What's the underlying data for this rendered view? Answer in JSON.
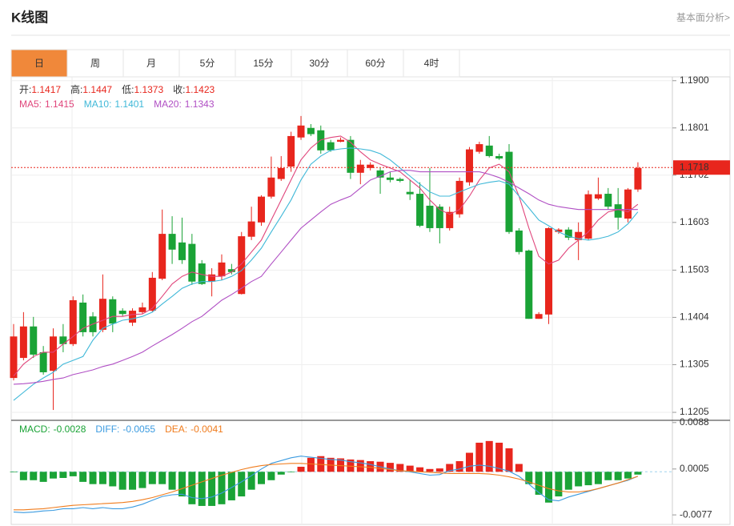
{
  "header": {
    "title": "K线图",
    "link": "基本面分析>"
  },
  "tabs": {
    "items": [
      "日",
      "周",
      "月",
      "5分",
      "15分",
      "30分",
      "60分",
      "4时"
    ],
    "active": 0,
    "active_color": "#f0883a"
  },
  "chart_data": [
    {
      "type": "candlestick",
      "info": {
        "color": "#e8261d",
        "items": [
          {
            "label": "开:",
            "value": 1.1417
          },
          {
            "label": "高:",
            "value": 1.1447
          },
          {
            "label": "低:",
            "value": 1.1373
          },
          {
            "label": "收:",
            "value": 1.1423
          }
        ]
      },
      "up_color": "#e8261d",
      "down_color": "#1aa336",
      "open": [
        1.1277,
        1.1319,
        1.1385,
        1.1331,
        1.1292,
        1.1364,
        1.1348,
        1.1435,
        1.1406,
        1.1378,
        1.1442,
        1.1418,
        1.1393,
        1.1415,
        1.1418,
        1.1485,
        1.1579,
        1.1561,
        1.1558,
        1.1517,
        1.1479,
        1.149,
        1.1505,
        1.1453,
        1.1573,
        1.1603,
        1.1657,
        1.1694,
        1.172,
        1.1781,
        1.1801,
        1.1796,
        1.1771,
        1.1772,
        1.1776,
        1.1707,
        1.1717,
        1.1712,
        1.1697,
        1.1694,
        1.1667,
        1.1663,
        1.1638,
        1.1636,
        1.1591,
        1.162,
        1.1687,
        1.1751,
        1.1764,
        1.1742,
        1.1751,
        1.1586,
        1.1544,
        1.1401,
        1.141,
        1.1583,
        1.1588,
        1.1566,
        1.1569,
        1.1653,
        1.1663,
        1.1641,
        1.1611,
        1.1672
      ],
      "high": [
        1.139,
        1.1415,
        1.1405,
        1.1344,
        1.1381,
        1.139,
        1.1448,
        1.1452,
        1.1415,
        1.1494,
        1.1448,
        1.1423,
        1.1423,
        1.1435,
        1.1499,
        1.163,
        1.1616,
        1.1613,
        1.1579,
        1.1524,
        1.1507,
        1.1536,
        1.1516,
        1.1583,
        1.1636,
        1.166,
        1.1741,
        1.1742,
        1.1793,
        1.1826,
        1.1809,
        1.1806,
        1.1776,
        1.1781,
        1.1784,
        1.1734,
        1.1729,
        1.1717,
        1.1709,
        1.1697,
        1.1692,
        1.1687,
        1.1717,
        1.1641,
        1.1636,
        1.1697,
        1.1761,
        1.1772,
        1.1784,
        1.1747,
        1.1767,
        1.1591,
        1.1546,
        1.1415,
        1.1593,
        1.1591,
        1.1593,
        1.1603,
        1.167,
        1.1697,
        1.1675,
        1.1675,
        1.1675,
        1.1729
      ],
      "low": [
        1.1272,
        1.1314,
        1.1319,
        1.1284,
        1.121,
        1.1331,
        1.1344,
        1.1364,
        1.1364,
        1.1373,
        1.1373,
        1.1406,
        1.1386,
        1.1411,
        1.1415,
        1.1482,
        1.1516,
        1.1516,
        1.1472,
        1.1472,
        1.1448,
        1.1482,
        1.1494,
        1.1452,
        1.1566,
        1.1596,
        1.1653,
        1.169,
        1.1709,
        1.1776,
        1.1784,
        1.1747,
        1.1751,
        1.1771,
        1.1694,
        1.1683,
        1.1712,
        1.1663,
        1.1687,
        1.1687,
        1.165,
        1.1593,
        1.1583,
        1.1559,
        1.1586,
        1.1613,
        1.168,
        1.1747,
        1.1739,
        1.1734,
        1.1579,
        1.1536,
        1.1401,
        1.1401,
        1.139,
        1.1579,
        1.1566,
        1.1524,
        1.1566,
        1.165,
        1.163,
        1.1588,
        1.1603,
        1.1667
      ],
      "close": [
        1.1364,
        1.1385,
        1.1326,
        1.1289,
        1.1364,
        1.1348,
        1.144,
        1.1373,
        1.1373,
        1.1443,
        1.1391,
        1.1411,
        1.1418,
        1.1425,
        1.1487,
        1.1579,
        1.1546,
        1.1524,
        1.1479,
        1.1474,
        1.1494,
        1.1519,
        1.1499,
        1.1574,
        1.1605,
        1.1657,
        1.1697,
        1.1717,
        1.1784,
        1.1806,
        1.1788,
        1.1754,
        1.1754,
        1.1776,
        1.1707,
        1.1724,
        1.1724,
        1.1697,
        1.1692,
        1.169,
        1.1662,
        1.1596,
        1.1591,
        1.1591,
        1.1625,
        1.169,
        1.1756,
        1.1767,
        1.1742,
        1.1737,
        1.1583,
        1.1541,
        1.1401,
        1.1411,
        1.1591,
        1.1588,
        1.1571,
        1.1583,
        1.1662,
        1.1662,
        1.1636,
        1.1613,
        1.1672,
        1.1717
      ],
      "series": [
        {
          "name": "MA5:",
          "legend_value": 1.1415,
          "color": "#e0457b",
          "values": [
            1.1281,
            1.1306,
            1.1322,
            1.1331,
            1.1331,
            1.1348,
            1.1364,
            1.1381,
            1.139,
            1.1398,
            1.1406,
            1.1406,
            1.141,
            1.1411,
            1.1423,
            1.1448,
            1.1474,
            1.149,
            1.1499,
            1.1494,
            1.149,
            1.149,
            1.1499,
            1.1516,
            1.1541,
            1.1566,
            1.1608,
            1.165,
            1.1692,
            1.1734,
            1.1759,
            1.1776,
            1.1781,
            1.1784,
            1.1771,
            1.1751,
            1.1734,
            1.1725,
            1.1717,
            1.1709,
            1.1692,
            1.1675,
            1.165,
            1.163,
            1.162,
            1.163,
            1.1658,
            1.1692,
            1.1717,
            1.1725,
            1.1709,
            1.1658,
            1.1591,
            1.1532,
            1.1516,
            1.1524,
            1.1549,
            1.1566,
            1.1583,
            1.1608,
            1.1625,
            1.163,
            1.1625,
            1.1641
          ]
        },
        {
          "name": "MA10:",
          "legend_value": 1.1401,
          "color": "#3fb8d8",
          "values": [
            1.123,
            1.1247,
            1.1264,
            1.1277,
            1.1289,
            1.1306,
            1.1314,
            1.1322,
            1.1356,
            1.1381,
            1.139,
            1.1398,
            1.1401,
            1.1406,
            1.1415,
            1.1432,
            1.1448,
            1.1465,
            1.1474,
            1.1479,
            1.1479,
            1.1482,
            1.149,
            1.1502,
            1.1524,
            1.1549,
            1.1583,
            1.1616,
            1.165,
            1.1692,
            1.1725,
            1.1742,
            1.1754,
            1.1757,
            1.1759,
            1.1757,
            1.1754,
            1.1747,
            1.1734,
            1.1717,
            1.17,
            1.1683,
            1.1667,
            1.1658,
            1.1658,
            1.1667,
            1.1675,
            1.1683,
            1.1687,
            1.169,
            1.1683,
            1.1658,
            1.1633,
            1.1608,
            1.1596,
            1.1583,
            1.1574,
            1.1569,
            1.1566,
            1.1569,
            1.1574,
            1.1583,
            1.16,
            1.1625
          ]
        },
        {
          "name": "MA20:",
          "legend_value": 1.1343,
          "color": "#b04fc4",
          "values": [
            1.1264,
            1.1265,
            1.1267,
            1.127,
            1.1274,
            1.1277,
            1.1284,
            1.1289,
            1.1294,
            1.1301,
            1.1306,
            1.1314,
            1.1322,
            1.1331,
            1.1344,
            1.1356,
            1.1368,
            1.1381,
            1.1395,
            1.1406,
            1.1423,
            1.144,
            1.1452,
            1.1465,
            1.1479,
            1.149,
            1.1516,
            1.1541,
            1.1566,
            1.1591,
            1.1608,
            1.1625,
            1.1641,
            1.165,
            1.1658,
            1.1675,
            1.1692,
            1.17,
            1.1709,
            1.1712,
            1.1712,
            1.1709,
            1.1709,
            1.1709,
            1.1709,
            1.1709,
            1.1709,
            1.1709,
            1.1704,
            1.1697,
            1.1687,
            1.1675,
            1.1663,
            1.165,
            1.1641,
            1.1636,
            1.1633,
            1.163,
            1.163,
            1.163,
            1.163,
            1.163,
            1.163,
            1.163
          ]
        }
      ],
      "last_price": 1.1718,
      "last_price_color": "#e8261d",
      "ylim": [
        1.1195,
        1.1908
      ],
      "yticks": [
        {
          "value": 1.19,
          "label": "1.1900"
        },
        1.1801,
        1.1702,
        1.1603,
        1.1503,
        1.1404,
        1.1305,
        1.1205
      ],
      "grid": true
    },
    {
      "type": "macd",
      "series": [
        {
          "name": "MACD:",
          "legend_value": -0.0028,
          "color": "#1aa336",
          "up_color": "#e8261d",
          "down_color": "#1aa336",
          "values": [
            -0.0001,
            -0.0015,
            -0.0015,
            -0.0018,
            -0.0012,
            -0.0011,
            -0.0008,
            -0.0018,
            -0.0022,
            -0.0022,
            -0.0026,
            -0.0032,
            -0.0032,
            -0.0029,
            -0.0022,
            -0.0022,
            -0.0032,
            -0.0044,
            -0.0058,
            -0.0061,
            -0.0061,
            -0.0058,
            -0.0051,
            -0.0044,
            -0.0032,
            -0.0022,
            -0.0015,
            -0.0005,
            -0.0001,
            0.0009,
            0.0025,
            0.0028,
            0.0025,
            0.0024,
            0.0022,
            0.0021,
            0.0019,
            0.0018,
            0.0016,
            0.0014,
            0.0011,
            0.0008,
            0.0005,
            0.0006,
            0.0014,
            0.0019,
            0.0034,
            0.0052,
            0.0055,
            0.0052,
            0.0042,
            0.0014,
            -0.0022,
            -0.0041,
            -0.0055,
            -0.0044,
            -0.0032,
            -0.0026,
            -0.0024,
            -0.0022,
            -0.0015,
            -0.0015,
            -0.0012,
            -0.0005
          ]
        },
        {
          "name": "DIFF:",
          "legend_value": -0.0055,
          "color": "#3b9be0",
          "values": [
            -0.0072,
            -0.0073,
            -0.0072,
            -0.007,
            -0.0069,
            -0.0066,
            -0.0066,
            -0.0064,
            -0.0066,
            -0.0064,
            -0.0066,
            -0.0066,
            -0.0063,
            -0.0058,
            -0.0051,
            -0.0044,
            -0.0041,
            -0.004,
            -0.0046,
            -0.0048,
            -0.0045,
            -0.0038,
            -0.0028,
            -0.0018,
            -0.0007,
            0.0005,
            0.0015,
            0.002,
            0.0025,
            0.0028,
            0.0026,
            0.0024,
            0.0022,
            0.0021,
            0.0018,
            0.0016,
            0.0013,
            0.0009,
            0.0005,
            0.0002,
            0,
            -0.0003,
            -0.0006,
            -0.0005,
            0.0002,
            0.0005,
            0.001,
            0.0012,
            0.001,
            0.0006,
            0.0001,
            -0.0008,
            -0.0022,
            -0.0037,
            -0.005,
            -0.0052,
            -0.0045,
            -0.004,
            -0.0035,
            -0.003,
            -0.0025,
            -0.002,
            -0.0015,
            -0.0008
          ]
        },
        {
          "name": "DEA:",
          "legend_value": -0.0041,
          "color": "#f07c1d",
          "values": [
            -0.0068,
            -0.0068,
            -0.0067,
            -0.0066,
            -0.0064,
            -0.0062,
            -0.006,
            -0.0059,
            -0.0058,
            -0.0057,
            -0.0056,
            -0.0055,
            -0.0053,
            -0.005,
            -0.0046,
            -0.0041,
            -0.0036,
            -0.003,
            -0.0024,
            -0.0018,
            -0.0012,
            -0.0006,
            -0.0001,
            0.0004,
            0.0008,
            0.0011,
            0.0013,
            0.0014,
            0.0015,
            0.0015,
            0.0014,
            0.0013,
            0.0012,
            0.0011,
            0.001,
            0.0009,
            0.0008,
            0.0006,
            0.0004,
            0.0002,
            0.0001,
            0,
            -0.0001,
            -0.0002,
            -0.0003,
            -0.0003,
            -0.0003,
            -0.0003,
            -0.0004,
            -0.0006,
            -0.0009,
            -0.0013,
            -0.0018,
            -0.0024,
            -0.003,
            -0.0034,
            -0.0036,
            -0.0036,
            -0.0034,
            -0.003,
            -0.0025,
            -0.002,
            -0.0014,
            -0.0008
          ]
        }
      ],
      "ylim": [
        -0.0094,
        0.0092
      ],
      "yticks": [
        0.0088,
        0.0005,
        -0.0077
      ]
    }
  ]
}
